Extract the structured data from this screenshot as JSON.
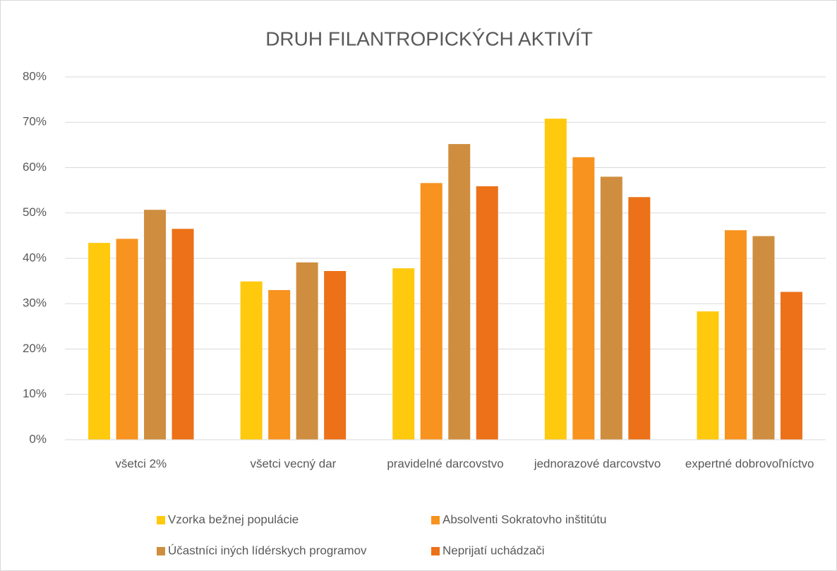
{
  "chart_data": {
    "type": "bar",
    "title": "DRUH FILANTROPICKÝCH AKTIVÍT",
    "categories": [
      "všetci 2%",
      "všetci vecný dar",
      "pravidelné darcovstvo",
      "jednorazové darcovstvo",
      "expertné dobrovoľníctvo"
    ],
    "series": [
      {
        "name": "Vzorka bežnej populácie",
        "color": "#ffc90e",
        "values": [
          43.4,
          34.9,
          37.8,
          70.8,
          28.3
        ]
      },
      {
        "name": "Absolventi Sokratovho inštitútu",
        "color": "#f7931e",
        "values": [
          44.3,
          33.0,
          56.6,
          62.3,
          46.2
        ]
      },
      {
        "name": "Účastníci iných lídérskych programov",
        "color": "#cf8e3f",
        "values": [
          50.7,
          39.1,
          65.2,
          58.0,
          44.9
        ]
      },
      {
        "name": "Neprijatí uchádzači",
        "color": "#ec7118",
        "values": [
          46.5,
          37.2,
          55.9,
          53.5,
          32.6
        ]
      }
    ],
    "ylim": [
      0,
      80
    ],
    "yticks": [
      {
        "value": 0,
        "label": "0%"
      },
      {
        "value": 10,
        "label": "10%"
      },
      {
        "value": 20,
        "label": "20%"
      },
      {
        "value": 30,
        "label": "30%"
      },
      {
        "value": 40,
        "label": "40%"
      },
      {
        "value": 50,
        "label": "50%"
      },
      {
        "value": 60,
        "label": "60%"
      },
      {
        "value": 70,
        "label": "70%"
      },
      {
        "value": 80,
        "label": "80%"
      }
    ],
    "grid": true,
    "legend": "bottom"
  }
}
